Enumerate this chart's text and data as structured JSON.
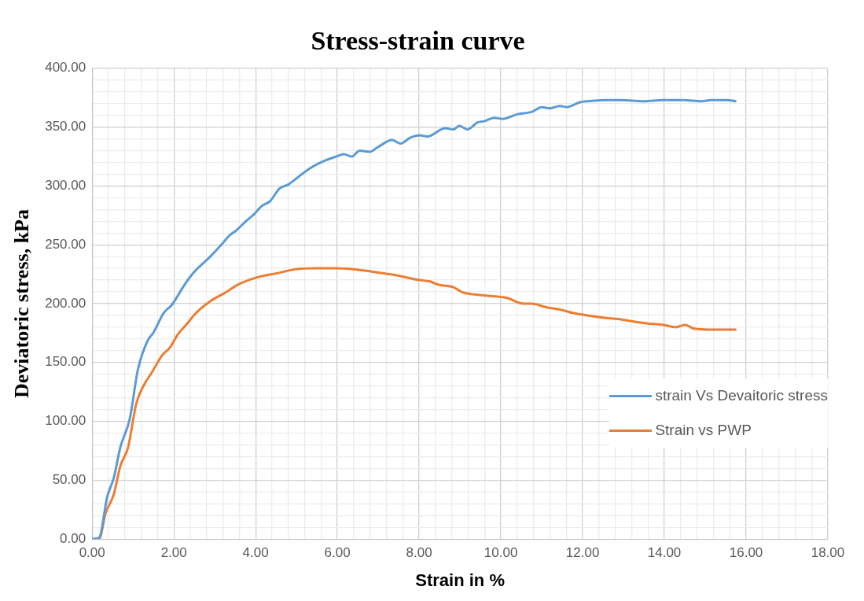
{
  "chart_data": {
    "type": "line",
    "title": "Stress-strain curve",
    "xlabel": "Strain in %",
    "ylabel": "Deviatoric stress, kPa",
    "legend": "right",
    "grid": true,
    "marker": "none",
    "line_style": "solid",
    "xlim": [
      0,
      18
    ],
    "ylim": [
      0,
      400
    ],
    "xticks": [
      {
        "value": 0,
        "label": "0.00"
      },
      {
        "value": 0.4,
        "label": null
      },
      {
        "value": 0.8,
        "label": null
      },
      {
        "value": 1.2,
        "label": null
      },
      {
        "value": 1.6,
        "label": null
      },
      {
        "value": 2,
        "label": "2.00"
      },
      {
        "value": 2.4,
        "label": null
      },
      {
        "value": 2.8,
        "label": null
      },
      {
        "value": 3.2,
        "label": null
      },
      {
        "value": 3.6,
        "label": null
      },
      {
        "value": 4,
        "label": "4.00"
      },
      {
        "value": 4.4,
        "label": null
      },
      {
        "value": 4.8,
        "label": null
      },
      {
        "value": 5.2,
        "label": null
      },
      {
        "value": 5.6,
        "label": null
      },
      {
        "value": 6,
        "label": "6.00"
      },
      {
        "value": 6.4,
        "label": null
      },
      {
        "value": 6.8,
        "label": null
      },
      {
        "value": 7.2,
        "label": null
      },
      {
        "value": 7.6,
        "label": null
      },
      {
        "value": 8,
        "label": "8.00"
      },
      {
        "value": 8.4,
        "label": null
      },
      {
        "value": 8.8,
        "label": null
      },
      {
        "value": 9.2,
        "label": null
      },
      {
        "value": 9.6,
        "label": null
      },
      {
        "value": 10,
        "label": "10.00"
      },
      {
        "value": 10.4,
        "label": null
      },
      {
        "value": 10.8,
        "label": null
      },
      {
        "value": 11.2,
        "label": null
      },
      {
        "value": 11.6,
        "label": null
      },
      {
        "value": 12,
        "label": "12.00"
      },
      {
        "value": 12.4,
        "label": null
      },
      {
        "value": 12.8,
        "label": null
      },
      {
        "value": 13.2,
        "label": null
      },
      {
        "value": 13.6,
        "label": null
      },
      {
        "value": 14,
        "label": "14.00"
      },
      {
        "value": 14.4,
        "label": null
      },
      {
        "value": 14.8,
        "label": null
      },
      {
        "value": 15.2,
        "label": null
      },
      {
        "value": 15.6,
        "label": null
      },
      {
        "value": 16,
        "label": "16.00"
      },
      {
        "value": 16.4,
        "label": null
      },
      {
        "value": 16.8,
        "label": null
      },
      {
        "value": 17.2,
        "label": null
      },
      {
        "value": 17.6,
        "label": null
      },
      {
        "value": 18,
        "label": "18.00"
      }
    ],
    "yticks": [
      {
        "value": 0,
        "label": "0.00"
      },
      {
        "value": 10,
        "label": null
      },
      {
        "value": 20,
        "label": null
      },
      {
        "value": 30,
        "label": null
      },
      {
        "value": 40,
        "label": null
      },
      {
        "value": 50,
        "label": "50.00"
      },
      {
        "value": 60,
        "label": null
      },
      {
        "value": 70,
        "label": null
      },
      {
        "value": 80,
        "label": null
      },
      {
        "value": 90,
        "label": null
      },
      {
        "value": 100,
        "label": "100.00"
      },
      {
        "value": 110,
        "label": null
      },
      {
        "value": 120,
        "label": null
      },
      {
        "value": 130,
        "label": null
      },
      {
        "value": 140,
        "label": null
      },
      {
        "value": 150,
        "label": "150.00"
      },
      {
        "value": 160,
        "label": null
      },
      {
        "value": 170,
        "label": null
      },
      {
        "value": 180,
        "label": null
      },
      {
        "value": 190,
        "label": null
      },
      {
        "value": 200,
        "label": "200.00"
      },
      {
        "value": 210,
        "label": null
      },
      {
        "value": 220,
        "label": null
      },
      {
        "value": 230,
        "label": null
      },
      {
        "value": 240,
        "label": null
      },
      {
        "value": 250,
        "label": "250.00"
      },
      {
        "value": 260,
        "label": null
      },
      {
        "value": 270,
        "label": null
      },
      {
        "value": 280,
        "label": null
      },
      {
        "value": 290,
        "label": null
      },
      {
        "value": 300,
        "label": "300.00"
      },
      {
        "value": 310,
        "label": null
      },
      {
        "value": 320,
        "label": null
      },
      {
        "value": 330,
        "label": null
      },
      {
        "value": 340,
        "label": null
      },
      {
        "value": 350,
        "label": "350.00"
      },
      {
        "value": 360,
        "label": null
      },
      {
        "value": 370,
        "label": null
      },
      {
        "value": 380,
        "label": null
      },
      {
        "value": 390,
        "label": null
      },
      {
        "value": 400,
        "label": "400.00"
      }
    ],
    "series": [
      {
        "name": "strain Vs Devaitoric stress",
        "color": "#5b9bd5",
        "x": [
          0,
          0.17,
          0.37,
          0.53,
          0.69,
          0.92,
          1.12,
          1.35,
          1.51,
          1.75,
          1.95,
          2.26,
          2.5,
          2.89,
          3.21,
          3.36,
          3.52,
          3.76,
          3.96,
          4.15,
          4.35,
          4.59,
          4.79,
          5.02,
          5.33,
          5.73,
          5.97,
          6.16,
          6.35,
          6.55,
          6.79,
          6.99,
          7.34,
          7.54,
          7.78,
          8.02,
          8.2,
          8.64,
          8.84,
          8.98,
          9.18,
          9.43,
          9.59,
          9.84,
          10.04,
          10.41,
          10.76,
          11.0,
          11.2,
          11.44,
          11.61,
          11.92,
          12.12,
          12.6,
          12.94,
          13.49,
          13.97,
          14.45,
          14.92,
          15.13,
          15.53,
          15.74
        ],
        "values": [
          0,
          1,
          36,
          52,
          78,
          102,
          144,
          168,
          176,
          192,
          199,
          216,
          227,
          240,
          252,
          258,
          262,
          270,
          276,
          283,
          287,
          298,
          301,
          307,
          315,
          322,
          325,
          327,
          325,
          330,
          329,
          333,
          339,
          336,
          341,
          343,
          342,
          349,
          348,
          351,
          348,
          354,
          355,
          358,
          357,
          361,
          363,
          367,
          366,
          368,
          367,
          371,
          372,
          373,
          373,
          372,
          373,
          373,
          372,
          373,
          373,
          372
        ]
      },
      {
        "name": "Strain vs PWP",
        "color": "#ed7d31",
        "x": [
          0,
          0.17,
          0.33,
          0.53,
          0.69,
          0.88,
          1.08,
          1.27,
          1.47,
          1.71,
          1.91,
          2.1,
          2.3,
          2.54,
          2.89,
          3.29,
          3.56,
          4.0,
          4.55,
          4.94,
          5.49,
          5.96,
          6.43,
          7.07,
          7.46,
          8.01,
          8.25,
          8.48,
          8.84,
          9.04,
          9.59,
          10.14,
          10.55,
          10.76,
          11.1,
          11.44,
          11.78,
          12.12,
          12.53,
          12.87,
          13.22,
          13.63,
          13.97,
          14.28,
          14.51,
          14.71,
          15.2,
          15.74
        ],
        "values": [
          0,
          0,
          22,
          38,
          62,
          78,
          115,
          131,
          142,
          156,
          163,
          174,
          182,
          192,
          202,
          210,
          216,
          222,
          226,
          229,
          230,
          230,
          229,
          226,
          224,
          220,
          219,
          216,
          214,
          210,
          207,
          205,
          200,
          200,
          197,
          195,
          192,
          190,
          188,
          187,
          185,
          183,
          182,
          180,
          182,
          179,
          178,
          178
        ]
      }
    ]
  }
}
